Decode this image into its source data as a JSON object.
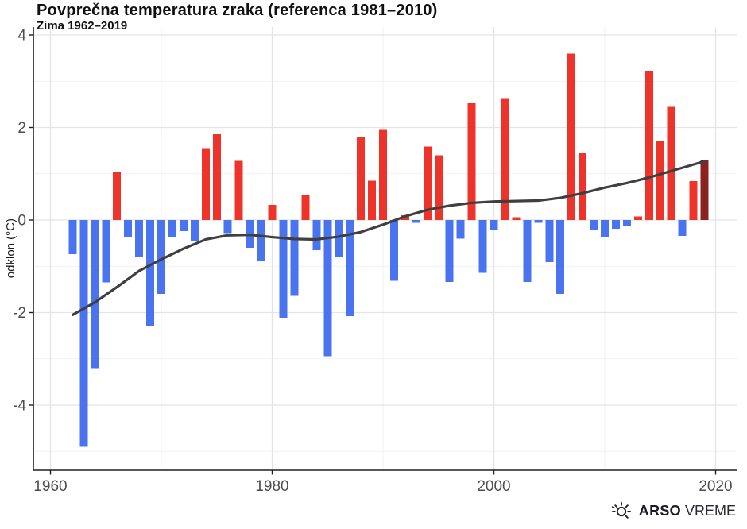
{
  "header": {
    "title": "Povprečna temperatura zraka (referenca 1981–2010)",
    "subtitle": "Zima 1962–2019"
  },
  "axes": {
    "y_label": "odklon (°C)",
    "y_ticks": [
      4,
      2,
      0,
      -2,
      -4
    ],
    "y_minor_ticks": [
      3,
      1,
      -1,
      -3,
      -5
    ],
    "x_ticks": [
      1960,
      1980,
      2000,
      2020
    ],
    "x_minor_ticks": [
      1970,
      1990,
      2010
    ],
    "tick_color": "#4e4e4e",
    "axis_line_color": "#1f1f1f",
    "major_grid_color": "#e4e4e4",
    "minor_grid_color": "#f1f1f1"
  },
  "branding": {
    "icon": "sun-icon",
    "name_bold": "ARSO",
    "name_regular": "VREME"
  },
  "chart_data": {
    "type": "bar",
    "title": "Povprečna temperatura zraka (referenca 1981–2010)",
    "subtitle": "Zima 1962–2019",
    "xlabel": "",
    "ylabel": "odklon (°C)",
    "ylim": [
      -5.4,
      4.17
    ],
    "xlim": [
      1958.5,
      2022
    ],
    "grid": "on",
    "legend": "none",
    "x": [
      1962,
      1963,
      1964,
      1965,
      1966,
      1967,
      1968,
      1969,
      1970,
      1971,
      1972,
      1973,
      1974,
      1975,
      1976,
      1977,
      1978,
      1979,
      1980,
      1981,
      1982,
      1983,
      1984,
      1985,
      1986,
      1987,
      1988,
      1989,
      1990,
      1991,
      1992,
      1993,
      1994,
      1995,
      1996,
      1997,
      1998,
      1999,
      2000,
      2001,
      2002,
      2003,
      2004,
      2005,
      2006,
      2007,
      2008,
      2009,
      2010,
      2011,
      2012,
      2013,
      2014,
      2015,
      2016,
      2017,
      2018,
      2019
    ],
    "values": [
      -0.74,
      -4.9,
      -3.2,
      -1.35,
      1.05,
      -0.38,
      -0.8,
      -2.28,
      -1.6,
      -0.36,
      -0.24,
      -0.46,
      1.55,
      1.85,
      -0.28,
      1.28,
      -0.6,
      -0.88,
      0.33,
      -2.11,
      -1.64,
      0.54,
      -0.65,
      -2.94,
      -0.79,
      -2.08,
      1.79,
      0.85,
      1.95,
      -1.31,
      0.1,
      -0.06,
      1.59,
      1.4,
      -1.34,
      -0.4,
      2.52,
      -1.14,
      -0.22,
      2.62,
      0.06,
      -1.34,
      -0.06,
      -0.91,
      -1.6,
      3.6,
      1.46,
      -0.21,
      -0.38,
      -0.19,
      -0.14,
      0.08,
      3.21,
      1.71,
      2.45,
      -0.34,
      0.84,
      1.3
    ],
    "palette": {
      "positive": "#ee342a",
      "negative": "#4a73f0",
      "final_year": "#8b2220"
    },
    "trend": {
      "name": "smoothed-trend",
      "color": "#3f3f3f",
      "x": [
        1962,
        1964,
        1966,
        1968,
        1970,
        1972,
        1974,
        1976,
        1978,
        1980,
        1982,
        1984,
        1986,
        1988,
        1990,
        1992,
        1994,
        1996,
        1998,
        2000,
        2002,
        2004,
        2006,
        2008,
        2010,
        2012,
        2014,
        2016,
        2018,
        2019
      ],
      "values": [
        -2.05,
        -1.78,
        -1.45,
        -1.1,
        -0.85,
        -0.62,
        -0.42,
        -0.33,
        -0.32,
        -0.37,
        -0.41,
        -0.42,
        -0.36,
        -0.26,
        -0.1,
        0.08,
        0.22,
        0.31,
        0.37,
        0.4,
        0.41,
        0.42,
        0.48,
        0.58,
        0.7,
        0.8,
        0.92,
        1.06,
        1.2,
        1.27
      ]
    }
  }
}
